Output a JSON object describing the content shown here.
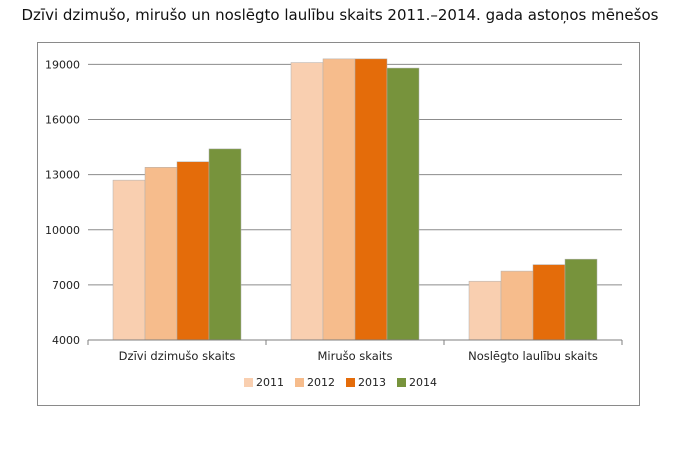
{
  "chart_data": {
    "type": "bar",
    "title": "Dzīvi dzimušo, mirušo un noslēgto laulību skaits 2011.–2014. gada astoņos mēnešos",
    "categories": [
      "Dzīvi dzimušo skaits",
      "Mirušo skaits",
      "Noslēgto laulību skaits"
    ],
    "series": [
      {
        "name": "2011",
        "color": "#f9cfb0",
        "values": [
          12700,
          19100,
          7200
        ]
      },
      {
        "name": "2012",
        "color": "#f6bc8c",
        "values": [
          13400,
          19300,
          7750
        ]
      },
      {
        "name": "2013",
        "color": "#e46c0a",
        "values": [
          13700,
          19300,
          8100
        ]
      },
      {
        "name": "2014",
        "color": "#77933c",
        "values": [
          14400,
          18800,
          8400
        ]
      }
    ],
    "y_ticks": [
      4000,
      7000,
      10000,
      13000,
      16000,
      19000
    ],
    "ylim": [
      4000,
      20000
    ],
    "xlabel": "",
    "ylabel": "",
    "legend": "bottom",
    "grid": true
  }
}
